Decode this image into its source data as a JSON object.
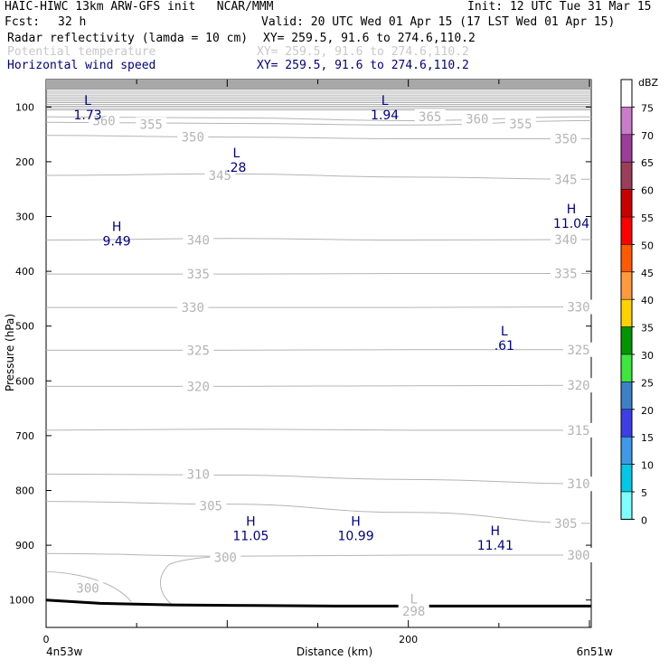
{
  "header": {
    "title": "HAIC-HIWC 13km ARW-GFS init   NCAR/MMM",
    "init": "Init: 12 UTC Tue 31 Mar 15",
    "fcst_label": "Fcst:",
    "fcst_value": "32 h",
    "valid": "Valid: 20 UTC Wed 01 Apr 15 (17 LST Wed 01 Apr 15)",
    "fields": [
      {
        "name": "Radar reflectivity (lamda = 10 cm)",
        "xy": "XY= 259.5, 91.6 to 274.6,110.2",
        "color": "#000000"
      },
      {
        "name": "Potential temperature",
        "xy": "XY= 259.5, 91.6 to 274.6,110.2",
        "color": "#c8c8c8"
      },
      {
        "name": "Horizontal wind speed",
        "xy": "XY= 259.5, 91.6 to 274.6,110.2",
        "color": "#000080"
      }
    ]
  },
  "axes": {
    "ylabel": "Pressure (hPa)",
    "xlabel": "Distance (km)",
    "left_endpoint": "4n53w",
    "right_endpoint": "6n51w"
  },
  "colorbar": {
    "unit": "dBZ",
    "levels": [
      "75",
      "70",
      "65",
      "60",
      "55",
      "50",
      "45",
      "40",
      "35",
      "30",
      "25",
      "20",
      "15",
      "10",
      "5",
      "0"
    ],
    "colors": [
      "#ffffff",
      "#c87dc8",
      "#9a3e9a",
      "#9a3e5a",
      "#c80000",
      "#ff0000",
      "#ff5a00",
      "#ff9a3e",
      "#ffd200",
      "#009600",
      "#3ee63e",
      "#3e80c8",
      "#3e3ee6",
      "#3e9ae6",
      "#00c8e6",
      "#80ffff"
    ]
  },
  "chart_data": {
    "type": "cross-section contour",
    "x_ticks": [
      0,
      200
    ],
    "xlim": [
      0,
      301
    ],
    "y_ticks": [
      100,
      200,
      300,
      400,
      500,
      600,
      700,
      800,
      900,
      1000
    ],
    "ylim": [
      1050,
      50
    ],
    "y_scale": "linear",
    "theta_labels": [
      {
        "v": "360",
        "x": 32,
        "p": 125
      },
      {
        "v": "355",
        "x": 58,
        "p": 132
      },
      {
        "v": "365",
        "x": 212,
        "p": 118
      },
      {
        "v": "360",
        "x": 238,
        "p": 122
      },
      {
        "v": "355",
        "x": 262,
        "p": 131
      },
      {
        "v": "350",
        "x": 81,
        "p": 155
      },
      {
        "v": "350",
        "x": 287,
        "p": 158
      },
      {
        "v": "345",
        "x": 96,
        "p": 225
      },
      {
        "v": "345",
        "x": 287,
        "p": 232
      },
      {
        "v": "340",
        "x": 84,
        "p": 343
      },
      {
        "v": "340",
        "x": 287,
        "p": 342
      },
      {
        "v": "335",
        "x": 84,
        "p": 405
      },
      {
        "v": "335",
        "x": 287,
        "p": 404
      },
      {
        "v": "330",
        "x": 81,
        "p": 466
      },
      {
        "v": "330",
        "x": 294,
        "p": 465
      },
      {
        "v": "325",
        "x": 84,
        "p": 544
      },
      {
        "v": "325",
        "x": 294,
        "p": 543
      },
      {
        "v": "320",
        "x": 84,
        "p": 610
      },
      {
        "v": "320",
        "x": 294,
        "p": 608
      },
      {
        "v": "315",
        "x": 294,
        "p": 690
      },
      {
        "v": "310",
        "x": 84,
        "p": 770
      },
      {
        "v": "310",
        "x": 294,
        "p": 788
      },
      {
        "v": "305",
        "x": 91,
        "p": 828
      },
      {
        "v": "305",
        "x": 287,
        "p": 860
      },
      {
        "v": "300",
        "x": 99,
        "p": 922
      },
      {
        "v": "300",
        "x": 294,
        "p": 918
      },
      {
        "v": "300",
        "x": 23,
        "p": 978
      },
      {
        "v": "298",
        "x": 203,
        "p": 1020
      }
    ],
    "extrema": [
      {
        "mark": "L",
        "value": "1.73",
        "x": 23,
        "p": 90
      },
      {
        "mark": "L",
        "value": "1.94",
        "x": 187,
        "p": 90
      },
      {
        "mark": "L",
        "value": ".28",
        "x": 105,
        "p": 185
      },
      {
        "mark": "H",
        "value": "11.04",
        "x": 290,
        "p": 288
      },
      {
        "mark": "H",
        "value": "9.49",
        "x": 39,
        "p": 320
      },
      {
        "mark": "L",
        "value": ".61",
        "x": 253,
        "p": 510
      },
      {
        "mark": "H",
        "value": "11.05",
        "x": 113,
        "p": 858
      },
      {
        "mark": "H",
        "value": "10.99",
        "x": 171,
        "p": 858
      },
      {
        "mark": "H",
        "value": "11.41",
        "x": 248,
        "p": 875
      }
    ],
    "theta_label_min": {
      "mark": "L",
      "x": 203,
      "p": 998
    }
  }
}
